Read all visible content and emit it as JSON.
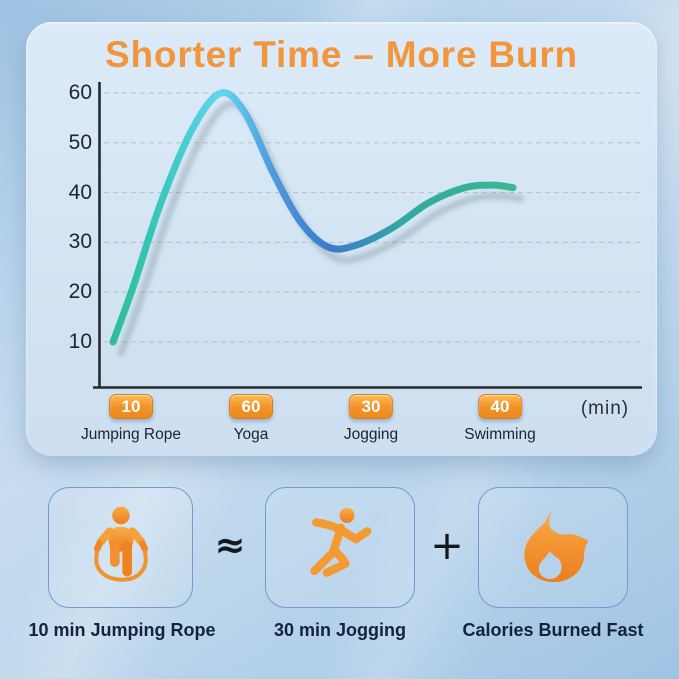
{
  "title": "Shorter Time – More Burn",
  "colors": {
    "accent_orange": "#f2953d",
    "badge_orange_top": "#fbba55",
    "badge_orange_bottom": "#ee8a1e",
    "curve_green": "#2ebd97",
    "curve_cyan": "#64d6f0",
    "curve_blue": "#3c79cd",
    "panel_blue": "#d3e4f3",
    "page_blue": "#a9cbe6",
    "axis_dark": "#262b33"
  },
  "chart_data": {
    "type": "line",
    "title": "Shorter Time – More Burn",
    "categories": [
      "Jumping Rope",
      "Yoga",
      "Jogging",
      "Swimming"
    ],
    "minutes": [
      10,
      60,
      30,
      40
    ],
    "unit_label": "(min)",
    "yticks": [
      60,
      50,
      40,
      30,
      20,
      10
    ],
    "ylim": [
      0,
      65
    ],
    "xlabel": "",
    "ylabel": "",
    "grid": "dashed horizontal gridlines at each y tick",
    "legend": "none",
    "curve": {
      "meaning": "calorie burn curve across activities: high for 10 min jumping rope (peak 60 near Yoga mark), dip ~29 near Jogging, ~41 at Swimming",
      "samples": [
        {
          "t": 0.0,
          "v": 10
        },
        {
          "t": 0.05,
          "v": 21
        },
        {
          "t": 0.12,
          "v": 38
        },
        {
          "t": 0.2,
          "v": 53
        },
        {
          "t": 0.27,
          "v": 60
        },
        {
          "t": 0.33,
          "v": 56
        },
        {
          "t": 0.4,
          "v": 44
        },
        {
          "t": 0.47,
          "v": 34
        },
        {
          "t": 0.54,
          "v": 29
        },
        {
          "t": 0.61,
          "v": 29.5
        },
        {
          "t": 0.7,
          "v": 33
        },
        {
          "t": 0.79,
          "v": 38
        },
        {
          "t": 0.88,
          "v": 41
        },
        {
          "t": 0.95,
          "v": 41.5
        },
        {
          "t": 1.0,
          "v": 41
        }
      ]
    }
  },
  "bottom": {
    "items": [
      {
        "icon": "jump-rope-icon",
        "label": "10 min Jumping Rope"
      },
      {
        "icon": "runner-icon",
        "label": "30 min Jogging"
      },
      {
        "icon": "flame-icon",
        "label": "Calories Burned Fast"
      }
    ],
    "operators": [
      "≈",
      "+"
    ]
  }
}
